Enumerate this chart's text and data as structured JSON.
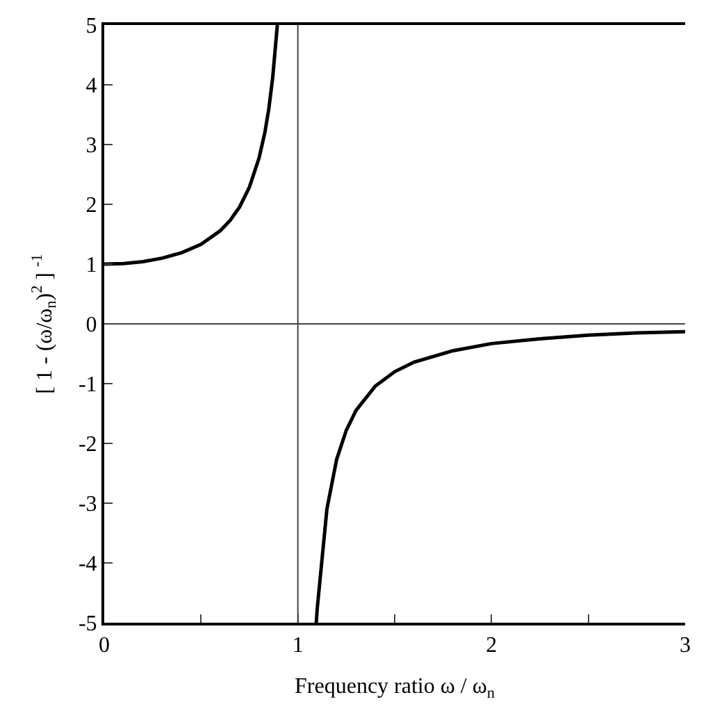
{
  "chart_data": {
    "type": "line",
    "xlabel": "Frequency ratio ω / ω$_{n}$",
    "ylabel": "[ 1 - (ω/ω$_{n}$)$^{2}$ ] $^{-1}$",
    "xlim": [
      0,
      3
    ],
    "ylim": [
      -5,
      5
    ],
    "xticks": [
      0,
      {
        "value": 0.5,
        "label": null
      },
      1,
      {
        "value": 1.5,
        "label": null
      },
      2,
      {
        "value": 2.5,
        "label": null
      },
      3
    ],
    "yticks": [
      -5,
      -4,
      -3,
      -2,
      -1,
      0,
      1,
      2,
      3,
      4,
      5
    ],
    "marker": "none",
    "line_style": "solid",
    "ref_lines": [
      {
        "axis": "x",
        "value": 1,
        "color": "#444444"
      },
      {
        "axis": "y",
        "value": 0,
        "color": "#444444"
      }
    ],
    "series": [
      {
        "color": "#000000",
        "x": [
          0,
          0.1,
          0.2,
          0.3,
          0.4,
          0.5,
          0.6,
          0.65,
          0.7,
          0.75,
          0.8,
          0.83,
          0.85,
          0.87,
          0.894
        ],
        "values": [
          1,
          1.01,
          1.04,
          1.1,
          1.19,
          1.33,
          1.56,
          1.73,
          1.96,
          2.29,
          2.78,
          3.21,
          3.6,
          4.12,
          5
        ]
      },
      {
        "color": "#000000",
        "x": [
          1.095,
          1.1,
          1.15,
          1.2,
          1.25,
          1.3,
          1.4,
          1.5,
          1.6,
          1.8,
          2,
          2.25,
          2.5,
          2.75,
          3
        ],
        "values": [
          -5,
          -4.76,
          -3.1,
          -2.27,
          -1.78,
          -1.45,
          -1.04,
          -0.8,
          -0.64,
          -0.45,
          -0.33,
          -0.25,
          -0.19,
          -0.15,
          -0.13
        ]
      }
    ]
  }
}
